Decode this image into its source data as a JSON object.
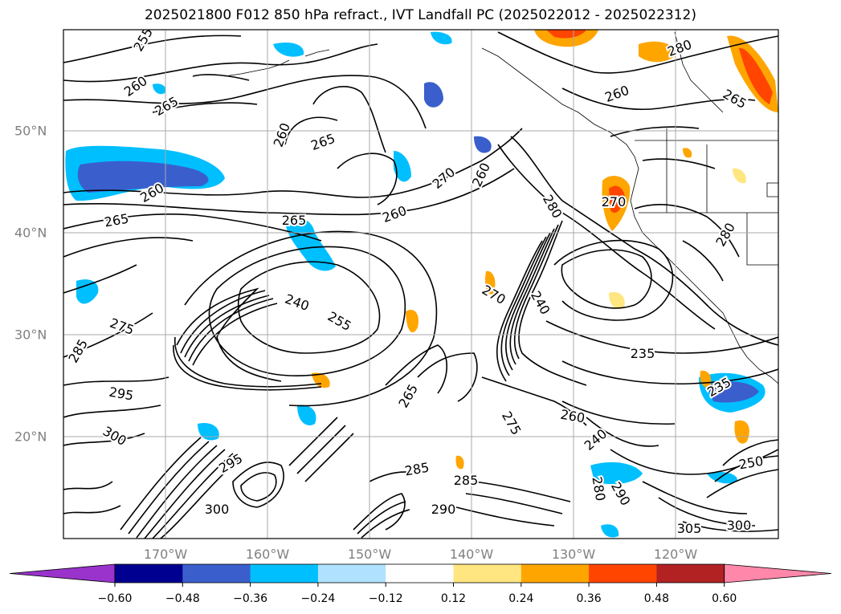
{
  "title": "2025021800 F012 850 hPa refract., IVT Landfall PC (2025022012 - 2025022312)",
  "axes": {
    "lon_labels": [
      "170°W",
      "160°W",
      "150°W",
      "140°W",
      "130°W",
      "120°W"
    ],
    "lat_labels": [
      "50°N",
      "40°N",
      "30°N",
      "20°N"
    ]
  },
  "colorbar": {
    "ticks": [
      "−0.60",
      "−0.48",
      "−0.36",
      "−0.24",
      "−0.12",
      "0.12",
      "0.24",
      "0.36",
      "0.48",
      "0.60"
    ],
    "colors": [
      "#9933cc",
      "#000090",
      "#3a5fcd",
      "#00bfff",
      "#b0e2ff",
      "#ffffff",
      "#ffe680",
      "#ffa500",
      "#ff4500",
      "#b22222",
      "#ff88aa"
    ]
  },
  "contour_labels": [
    "255",
    "260",
    "265",
    "260",
    "265",
    "260",
    "270",
    "260",
    "280",
    "260",
    "265",
    "260",
    "265",
    "280",
    "270",
    "265",
    "280",
    "275",
    "270",
    "240",
    "255",
    "285",
    "295",
    "300",
    "240",
    "235",
    "235",
    "250",
    "265",
    "275",
    "260",
    "240",
    "290",
    "280",
    "285",
    "285",
    "290",
    "295",
    "300",
    "305",
    "300"
  ],
  "chart_data": {
    "type": "map",
    "region": "North Pacific",
    "lon_range": [
      "180°W",
      "110°W"
    ],
    "lat_range": [
      "10°N",
      "60°N"
    ],
    "field_contours": "850 hPa refractivity",
    "field_shaded": "IVT Landfall PC",
    "grid": true
  }
}
